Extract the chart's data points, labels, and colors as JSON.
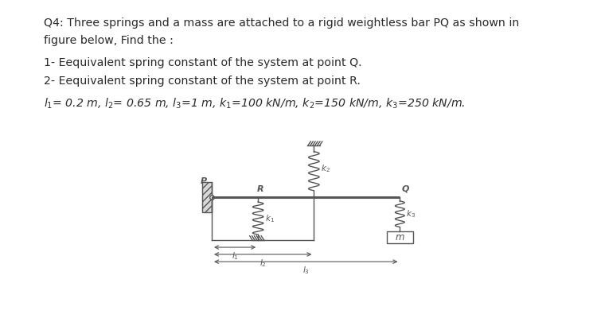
{
  "bg_color": "#ffffff",
  "text_color": "#2a2a2a",
  "line_color": "#555555",
  "title_line1": "Q4: Three springs and a mass are attached to a rigid weightless bar PQ as shown in",
  "title_line2": "figure below, Find the :",
  "item1": "1- Eequivalent spring constant of the system at point Q.",
  "item2": "2- Eequivalent spring constant of the system at point R.",
  "params": "$l_1$= 0.2 m, $l_2$= 0.65 m, $l_3$=1 m, $k_1$=100 kN/m, $k_2$=150 kN/m, $k_3$=250 kN/m.",
  "font_size_text": 10.2,
  "font_size_diagram": 7.5
}
